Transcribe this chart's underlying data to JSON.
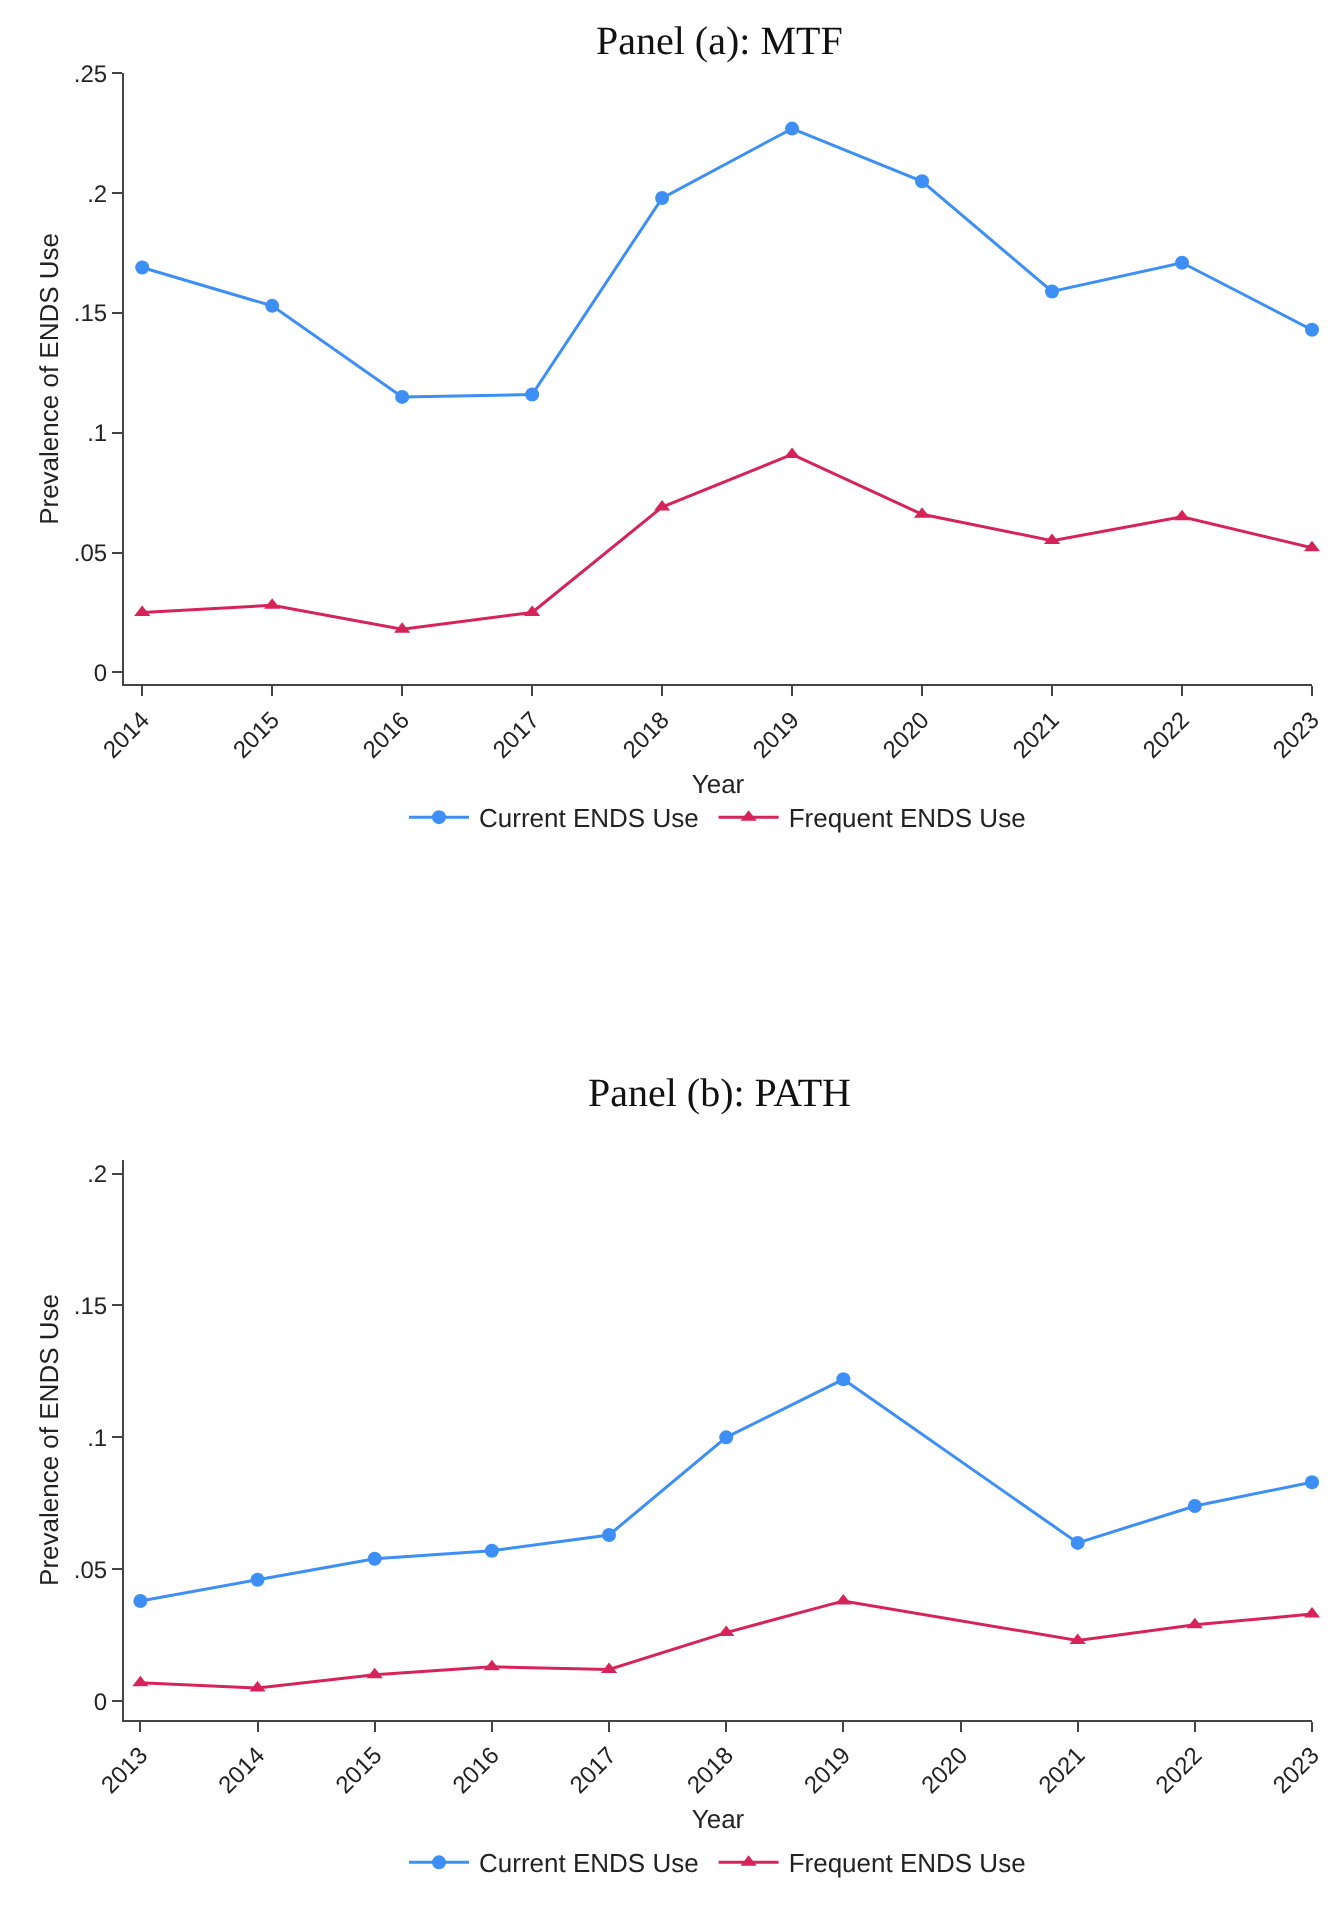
{
  "chart_data": [
    {
      "type": "line",
      "title": "Panel (a): MTF",
      "xlabel": "Year",
      "ylabel": "Prevalence of ENDS Use",
      "x": [
        2014,
        2015,
        2016,
        2017,
        2018,
        2019,
        2020,
        2021,
        2022,
        2023
      ],
      "xlim": [
        2013.86,
        2023
      ],
      "xticks": [
        2014,
        2015,
        2016,
        2017,
        2018,
        2019,
        2020,
        2021,
        2022,
        2023
      ],
      "ylim": [
        -0.005,
        0.25
      ],
      "yticks": [
        {
          "value": 0,
          "label": "0"
        },
        {
          "value": 0.05,
          "label": ".05"
        },
        {
          "value": 0.1,
          "label": ".1"
        },
        {
          "value": 0.15,
          "label": ".15"
        },
        {
          "value": 0.2,
          "label": ".2"
        },
        {
          "value": 0.25,
          "label": ".25"
        }
      ],
      "grid": false,
      "legend": "bottom",
      "line_style": "solid",
      "series": [
        {
          "name": "Current ENDS Use",
          "color": "#3d8ff5",
          "marker": "circle",
          "values": [
            0.169,
            0.153,
            0.115,
            0.116,
            0.198,
            0.227,
            0.205,
            0.159,
            0.171,
            0.143
          ]
        },
        {
          "name": "Frequent ENDS Use",
          "color": "#d6245a",
          "marker": "triangle",
          "values": [
            0.025,
            0.028,
            0.018,
            0.025,
            0.069,
            0.091,
            0.066,
            0.055,
            0.065,
            0.052
          ]
        }
      ]
    },
    {
      "type": "line",
      "title": "Panel (b): PATH",
      "xlabel": "Year",
      "ylabel": "Prevalence of ENDS Use",
      "x": [
        2013,
        2014,
        2015,
        2016,
        2017,
        2018,
        2019,
        2021,
        2022,
        2023
      ],
      "xlim": [
        2012.86,
        2023
      ],
      "xticks": [
        2013,
        2014,
        2015,
        2016,
        2017,
        2018,
        2019,
        2020,
        2021,
        2022,
        2023
      ],
      "ylim": [
        -0.007,
        0.205
      ],
      "yticks": [
        {
          "value": 0,
          "label": "0"
        },
        {
          "value": 0.05,
          "label": ".05"
        },
        {
          "value": 0.1,
          "label": ".1"
        },
        {
          "value": 0.15,
          "label": ".15"
        },
        {
          "value": 0.2,
          "label": ".2"
        }
      ],
      "grid": false,
      "legend": "bottom",
      "line_style": "solid",
      "series": [
        {
          "name": "Current ENDS Use",
          "color": "#3d8ff5",
          "marker": "circle",
          "values": [
            0.038,
            0.046,
            0.054,
            0.057,
            0.063,
            0.1,
            0.122,
            0.06,
            0.074,
            0.083
          ]
        },
        {
          "name": "Frequent ENDS Use",
          "color": "#d6245a",
          "marker": "triangle",
          "values": [
            0.007,
            0.005,
            0.01,
            0.013,
            0.012,
            0.026,
            0.038,
            0.023,
            0.029,
            0.033
          ]
        }
      ]
    }
  ]
}
